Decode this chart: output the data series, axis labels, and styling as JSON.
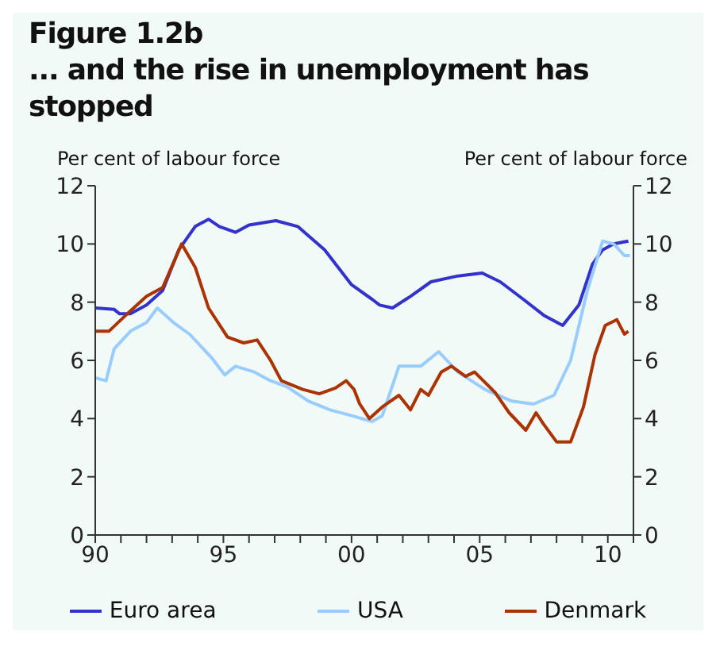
{
  "chart_data": {
    "type": "line",
    "title": "Figure 1.2b",
    "subtitle": "... and the rise in unemployment has stopped",
    "ylabel": "Per cent of labour force",
    "y2label": "Per cent of labour force",
    "xlim": [
      1990,
      2011
    ],
    "xticks": [
      {
        "value": 1990,
        "label": "90"
      },
      {
        "value": 1991,
        "label": null
      },
      {
        "value": 1992,
        "label": null
      },
      {
        "value": 1993,
        "label": null
      },
      {
        "value": 1994,
        "label": null
      },
      {
        "value": 1995,
        "label": "95"
      },
      {
        "value": 1996,
        "label": null
      },
      {
        "value": 1997,
        "label": null
      },
      {
        "value": 1998,
        "label": null
      },
      {
        "value": 1999,
        "label": null
      },
      {
        "value": 2000,
        "label": "00"
      },
      {
        "value": 2001,
        "label": null
      },
      {
        "value": 2002,
        "label": null
      },
      {
        "value": 2003,
        "label": null
      },
      {
        "value": 2004,
        "label": null
      },
      {
        "value": 2005,
        "label": "05"
      },
      {
        "value": 2006,
        "label": null
      },
      {
        "value": 2007,
        "label": null
      },
      {
        "value": 2008,
        "label": null
      },
      {
        "value": 2009,
        "label": null
      },
      {
        "value": 2010,
        "label": "10"
      },
      {
        "value": 2011,
        "label": null
      }
    ],
    "ylim": [
      0,
      12
    ],
    "yticks": [
      0,
      2,
      4,
      6,
      8,
      10,
      12
    ],
    "y2lim": [
      0,
      12
    ],
    "y2ticks": [
      0,
      2,
      4,
      6,
      8,
      10,
      12
    ],
    "legend": "bottom",
    "marker": "none",
    "line_style": "solid",
    "series": [
      {
        "name": "Euro area",
        "color": "#3333cc",
        "x": [
          1990,
          1990.74,
          1990.95,
          1991.37,
          1992.0,
          1992.63,
          1993.26,
          1993.9,
          1994.42,
          1994.84,
          1995.47,
          1996.0,
          1997.05,
          1997.9,
          1998.95,
          2000.0,
          2000.8,
          2001.1,
          2001.6,
          2002.3,
          2003.1,
          2004.15,
          2005.1,
          2005.8,
          2006.7,
          2007.5,
          2008.24,
          2008.87,
          2009.4,
          2009.8,
          2010.23,
          2010.8
        ],
        "values": [
          7.8,
          7.75,
          7.6,
          7.6,
          7.9,
          8.4,
          9.8,
          10.6,
          10.85,
          10.6,
          10.4,
          10.65,
          10.8,
          10.6,
          9.8,
          8.6,
          8.1,
          7.9,
          7.8,
          8.2,
          8.7,
          8.9,
          9.0,
          8.7,
          8.1,
          7.55,
          7.2,
          7.9,
          9.3,
          9.8,
          10.0,
          10.1
        ]
      },
      {
        "name": "USA",
        "color": "#99ccff",
        "x": [
          1990,
          1990.42,
          1990.74,
          1991.37,
          1992.0,
          1992.42,
          1993.05,
          1993.68,
          1994.53,
          1995.05,
          1995.47,
          1996.21,
          1996.84,
          1997.47,
          1998.32,
          1999.16,
          2000.0,
          2000.8,
          2001.2,
          2001.85,
          2002.7,
          2003.4,
          2004.15,
          2005.2,
          2006.25,
          2007.1,
          2007.9,
          2008.55,
          2009.2,
          2009.8,
          2010.23,
          2010.65,
          2010.86
        ],
        "values": [
          5.4,
          5.3,
          6.4,
          7.0,
          7.3,
          7.8,
          7.3,
          6.9,
          6.1,
          5.5,
          5.8,
          5.6,
          5.3,
          5.1,
          4.6,
          4.3,
          4.1,
          3.9,
          4.1,
          5.8,
          5.8,
          6.3,
          5.6,
          5.0,
          4.6,
          4.5,
          4.8,
          6.0,
          8.4,
          10.1,
          10.0,
          9.6,
          9.6
        ]
      },
      {
        "name": "Denmark",
        "color": "#aa3300",
        "x": [
          1990,
          1990.53,
          1991.37,
          1992.0,
          1992.63,
          1993.37,
          1993.9,
          1994.42,
          1995.16,
          1995.79,
          1996.32,
          1996.84,
          1997.26,
          1998.1,
          1998.74,
          1999.37,
          1999.79,
          2000.1,
          2000.32,
          2000.7,
          2001.2,
          2001.85,
          2002.3,
          2002.7,
          2003.0,
          2003.5,
          2003.9,
          2004.45,
          2004.8,
          2005.6,
          2006.15,
          2006.8,
          2007.2,
          2007.5,
          2008.0,
          2008.55,
          2009.05,
          2009.5,
          2009.9,
          2010.35,
          2010.65,
          2010.8
        ],
        "values": [
          7.0,
          7.0,
          7.7,
          8.2,
          8.5,
          10.0,
          9.2,
          7.8,
          6.8,
          6.6,
          6.7,
          6.0,
          5.3,
          5.0,
          4.85,
          5.05,
          5.3,
          5.0,
          4.5,
          4.0,
          4.4,
          4.8,
          4.3,
          5.0,
          4.8,
          5.6,
          5.8,
          5.45,
          5.6,
          4.9,
          4.2,
          3.6,
          4.2,
          3.8,
          3.2,
          3.2,
          4.4,
          6.2,
          7.2,
          7.4,
          6.9,
          7.0
        ]
      }
    ]
  }
}
